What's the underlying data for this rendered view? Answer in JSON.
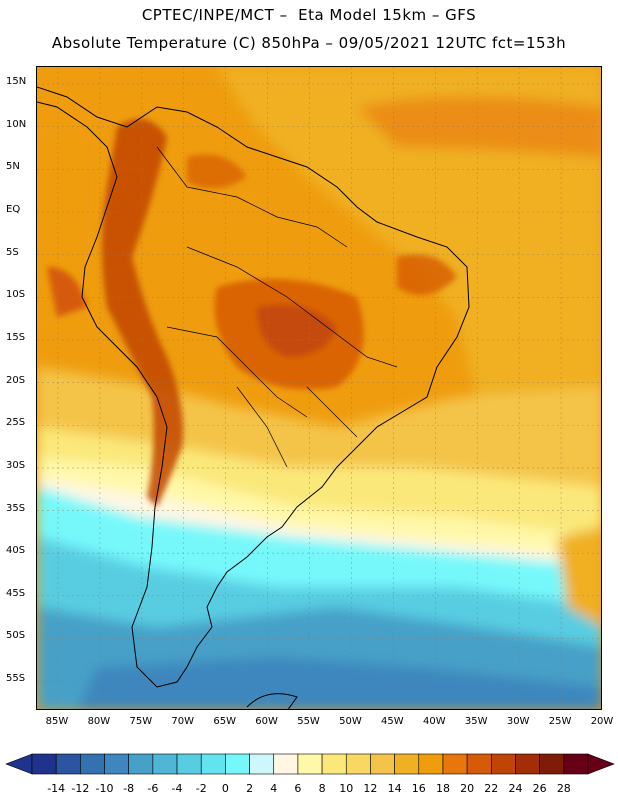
{
  "header": {
    "title_line1": "CPTEC/INPE/MCT –  Eta Model 15km – GFS",
    "title_line2": "Absolute Temperature (C) 850hPa – 09/05/2021 12UTC fct=153h"
  },
  "map": {
    "lat_labels": [
      "15N",
      "10N",
      "5N",
      "EQ",
      "5S",
      "10S",
      "15S",
      "20S",
      "25S",
      "30S",
      "35S",
      "40S",
      "45S",
      "50S",
      "55S"
    ],
    "lon_labels": [
      "85W",
      "80W",
      "75W",
      "70W",
      "65W",
      "60W",
      "55W",
      "50W",
      "45W",
      "40W",
      "35W",
      "30W",
      "25W",
      "20W"
    ],
    "lat_values": [
      15,
      10,
      5,
      0,
      -5,
      -10,
      -15,
      -20,
      -25,
      -30,
      -35,
      -40,
      -45,
      -50,
      -55
    ],
    "lon_values": [
      -85,
      -80,
      -75,
      -70,
      -65,
      -60,
      -55,
      -50,
      -45,
      -40,
      -35,
      -30,
      -25,
      -20
    ]
  },
  "colorbar": {
    "labels": [
      "-14",
      "-12",
      "-10",
      "-8",
      "-6",
      "-4",
      "-2",
      "0",
      "2",
      "4",
      "6",
      "8",
      "10",
      "12",
      "14",
      "16",
      "18",
      "20",
      "22",
      "24",
      "26",
      "28"
    ],
    "colors": [
      "#20338c",
      "#2b55a1",
      "#3471b0",
      "#3d87be",
      "#46a0c8",
      "#4fb7d5",
      "#58cde2",
      "#62e3ee",
      "#76f8fb",
      "#cdf7fb",
      "#fff7e4",
      "#fff8a8",
      "#fbe87a",
      "#f8d863",
      "#f4c44a",
      "#f0b023",
      "#ef9d0f",
      "#e7760c",
      "#d65a07",
      "#c14407",
      "#a32d06",
      "#7f1c07",
      "#670016"
    ]
  }
}
